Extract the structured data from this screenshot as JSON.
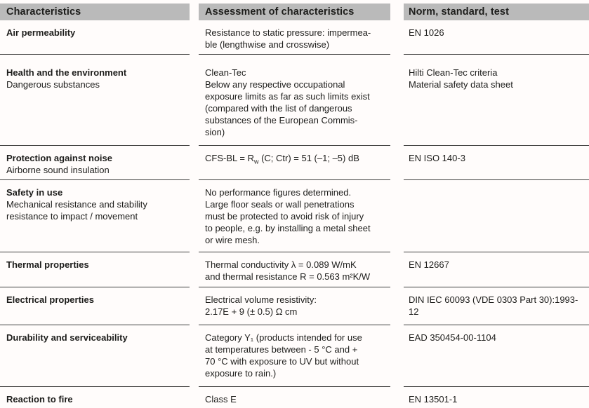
{
  "table": {
    "columns": [
      {
        "label": "Characteristics"
      },
      {
        "label": "Assessment of characteristics"
      },
      {
        "label": "Norm, standard, test"
      }
    ],
    "header_bg": "#bababa",
    "line_color": "#3d3d3c",
    "bottom_bar_color": "#8d8d8d",
    "rows": [
      {
        "characteristic": "Air permeability",
        "characteristic_sub": "",
        "assessment": "Resistance to static pressure: impermea-\nble (lengthwise and crosswise)",
        "norm": "EN 1026"
      },
      {
        "characteristic": "Health and the environment",
        "characteristic_sub": "Dangerous substances",
        "assessment": "Clean-Tec\nBelow any respective occupational\nexposure limits as far as such limits exist\n(compared with the list of dangerous\nsubstances of the European Commis-\nsion)",
        "norm": "Hilti Clean-Tec criteria\nMaterial safety data sheet"
      },
      {
        "characteristic": "Protection against noise",
        "characteristic_sub": "Airborne sound insulation",
        "assessment": "CFS-BL = R~w~ (C; Ctr) = 51 (–1; –5) dB",
        "norm": "EN ISO 140-3"
      },
      {
        "characteristic": "Safety in use",
        "characteristic_sub": "Mechanical resistance and stability\nresistance to impact / movement",
        "assessment": "No performance figures determined.\nLarge floor seals or wall penetrations\nmust be protected to avoid risk of injury\nto people, e.g. by installing a metal sheet\nor wire mesh.",
        "norm": ""
      },
      {
        "characteristic": "Thermal properties",
        "characteristic_sub": "",
        "assessment": "Thermal conductivity λ = 0.089 W/mK\nand thermal resistance R = 0.563 m²K/W",
        "norm": "EN 12667"
      },
      {
        "characteristic": "Electrical properties",
        "characteristic_sub": "",
        "assessment": "Electrical volume resistivity:\n2.17E + 9 (± 0.5) Ω cm",
        "norm": "DIN IEC 60093 (VDE 0303 Part 30):1993-\n12"
      },
      {
        "characteristic": "Durability and serviceability",
        "characteristic_sub": "",
        "assessment": "Category Y₁ (products intended for use\nat temperatures between - 5 °C and +\n70 °C with exposure to UV but without\nexposure to rain.)",
        "norm": "EAD 350454-00-1104"
      },
      {
        "characteristic": "Reaction to fire",
        "characteristic_sub": "",
        "assessment": "Class E",
        "norm": "EN 13501-1"
      }
    ]
  }
}
